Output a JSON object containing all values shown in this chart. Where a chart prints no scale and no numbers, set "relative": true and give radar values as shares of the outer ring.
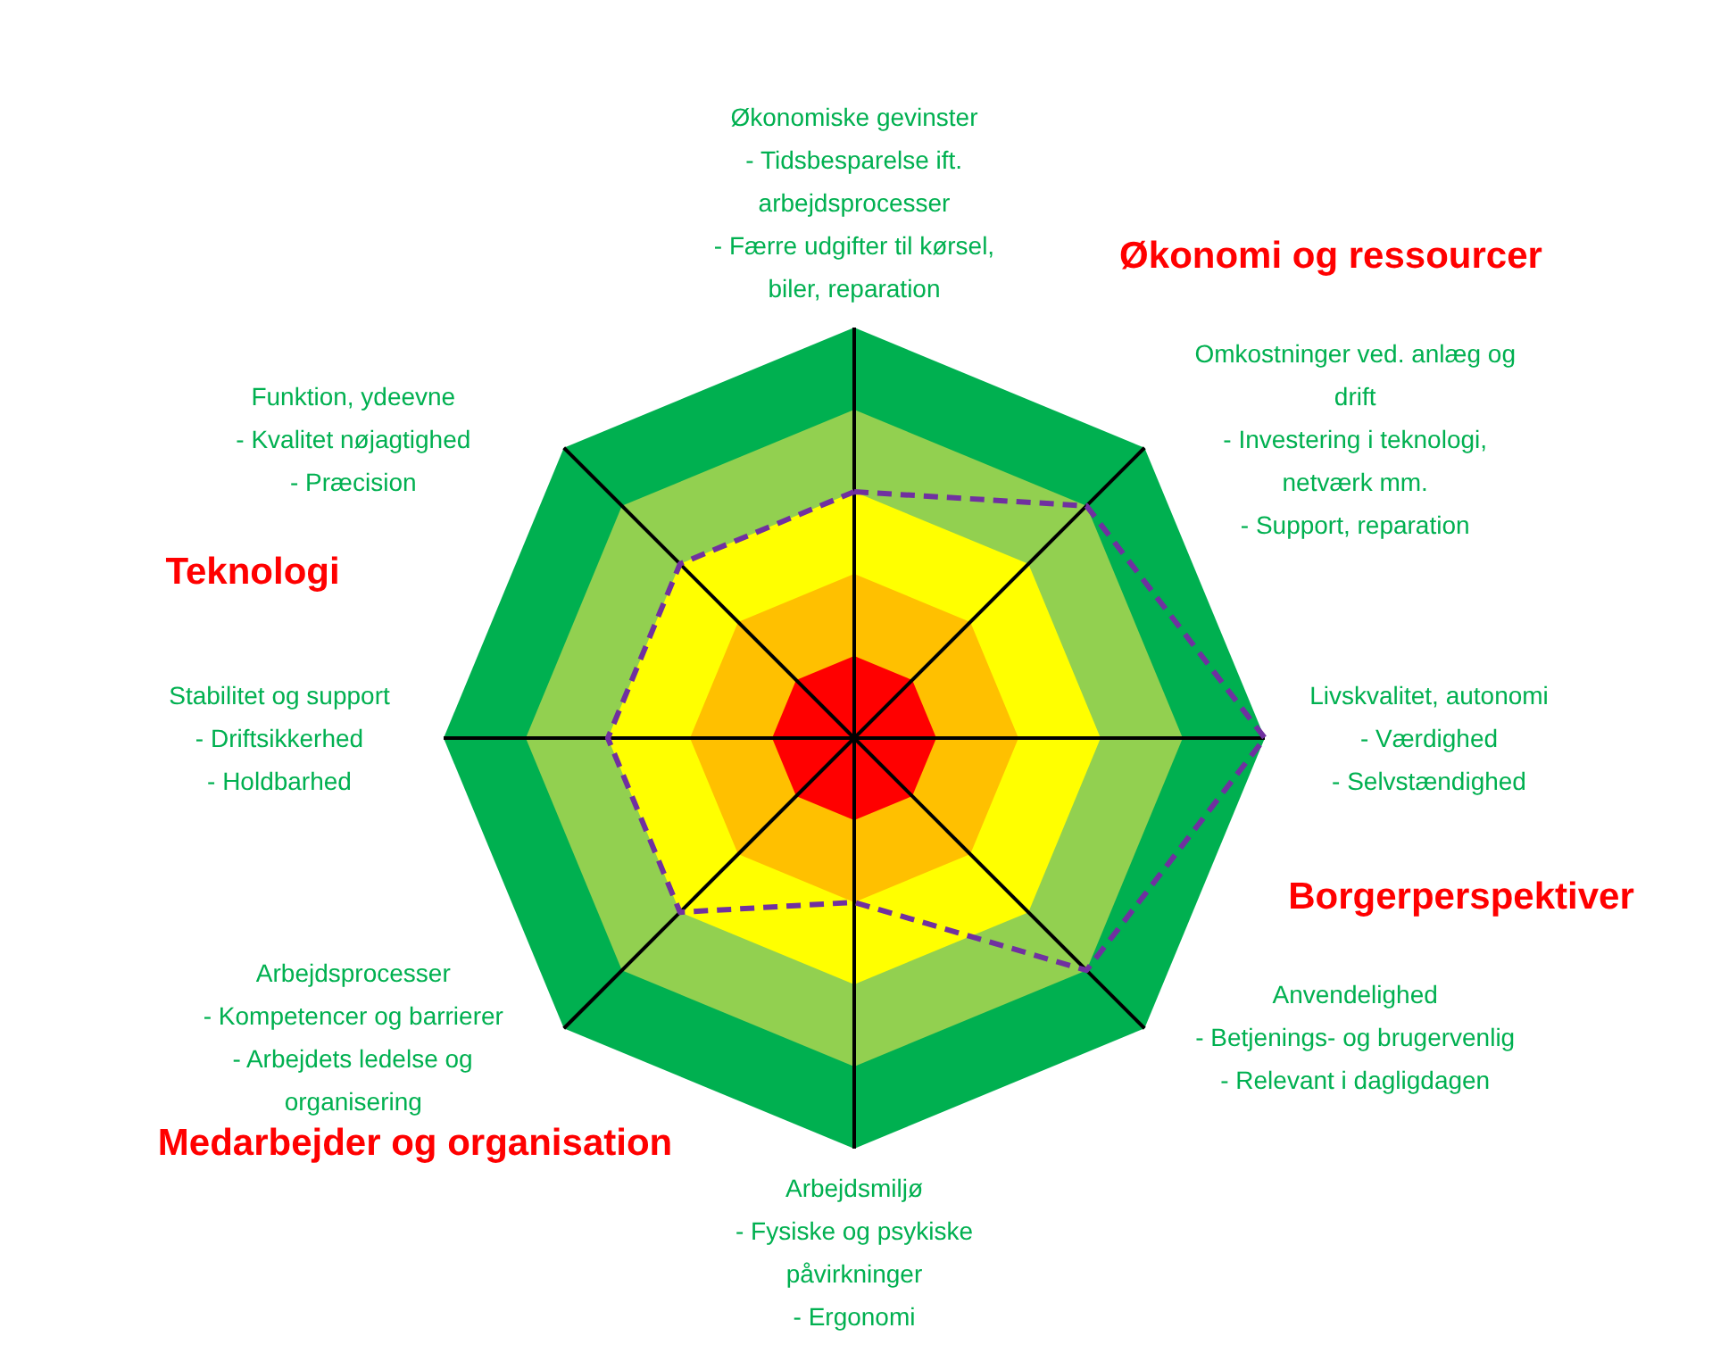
{
  "chart_data": {
    "type": "radar",
    "relative": true,
    "line_style": "dashed",
    "categories": [
      "Økonomiske gevinster\n- Tidsbesparelse ift.\narbejdsprocesser\n- Færre udgifter til kørsel,\nbiler, reparation",
      "Omkostninger ved. anlæg og\ndrift\n- Investering i teknologi,\nnetværk mm.\n- Support, reparation",
      "Livskvalitet, autonomi\n- Værdighed\n- Selvstændighed",
      "Anvendelighed\n- Betjenings- og brugervenlig\n- Relevant i dagligdagen",
      "Arbejdsmiljø\n- Fysiske og psykiske\npåvirkninger\n- Ergonomi",
      "Arbejdsprocesser\n- Kompetencer og barrierer\n- Arbejdets ledelse og\norganisering",
      "Stabilitet og support\n- Driftsikkerhed\n- Holdbarhed",
      "Funktion, ydeevne\n- Kvalitet nøjagtighed\n- Præcision"
    ],
    "series": [
      {
        "color": "#7030a0",
        "values": [
          0.6,
          0.8,
          1.0,
          0.8,
          0.4,
          0.6,
          0.6,
          0.6
        ]
      }
    ],
    "annotations": [
      "Økonomi og ressourcer",
      "Teknologi",
      "Borgerperspektiver",
      "Medarbejder og organisation"
    ]
  }
}
